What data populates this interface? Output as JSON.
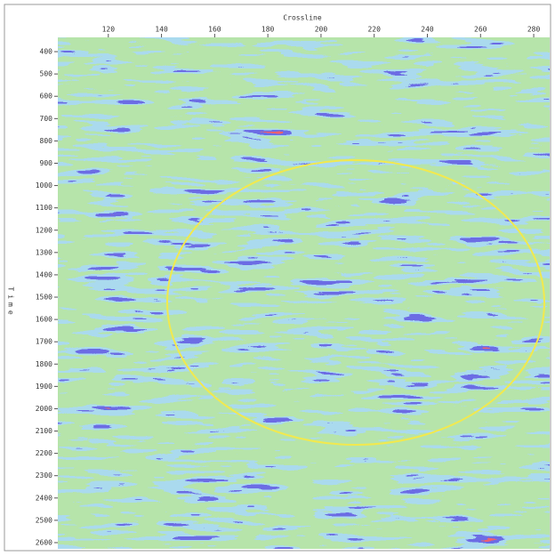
{
  "chart_data": {
    "type": "seismic",
    "title": "Crossline",
    "y_label": "Time",
    "xlim": [
      101,
      286
    ],
    "xticks": [
      120,
      140,
      160,
      180,
      200,
      220,
      240,
      260,
      280
    ],
    "ylim": [
      336,
      2628
    ],
    "y_inverted": true,
    "yticks": [
      400,
      500,
      600,
      700,
      800,
      900,
      1000,
      1100,
      1200,
      1300,
      1400,
      1500,
      1600,
      1700,
      1800,
      1900,
      2000,
      2100,
      2200,
      2300,
      2400,
      2500,
      2600
    ],
    "annotation_color": "#f2e94e"
  }
}
